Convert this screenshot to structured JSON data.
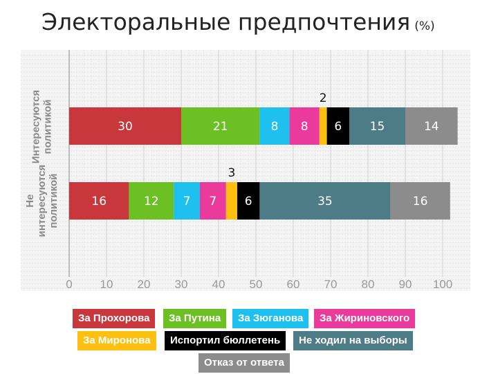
{
  "title": "Электоральные предпочтения",
  "title_unit": "(%)",
  "chart_data": {
    "type": "bar",
    "orientation": "horizontal",
    "stacked": true,
    "categories": [
      "Интересуются политикой",
      "Не интересуются политикой"
    ],
    "xlim": [
      0,
      100
    ],
    "xticks": [
      "0",
      "10",
      "20",
      "30",
      "40",
      "50",
      "60",
      "70",
      "80",
      "90",
      "100"
    ],
    "grid": true,
    "legend_position": "bottom",
    "series": [
      {
        "name": "За Прохорова",
        "values": [
          30,
          16
        ],
        "color": "#c8373b"
      },
      {
        "name": "За Путина",
        "values": [
          21,
          12
        ],
        "color": "#6cc024"
      },
      {
        "name": "За Зюганова",
        "values": [
          8,
          7
        ],
        "color": "#1ec0ef"
      },
      {
        "name": "За Жириновского",
        "values": [
          8,
          7
        ],
        "color": "#ea3a9b"
      },
      {
        "name": "За Миронова",
        "values": [
          2,
          3
        ],
        "color": "#fdc010"
      },
      {
        "name": "Испортил бюллетень",
        "values": [
          6,
          6
        ],
        "color": "#000000"
      },
      {
        "name": "Не ходил на выборы",
        "values": [
          15,
          35
        ],
        "color": "#4d7b86"
      },
      {
        "name": "Отказ от ответа",
        "values": [
          14,
          16
        ],
        "color": "#8c8c8c"
      }
    ]
  }
}
